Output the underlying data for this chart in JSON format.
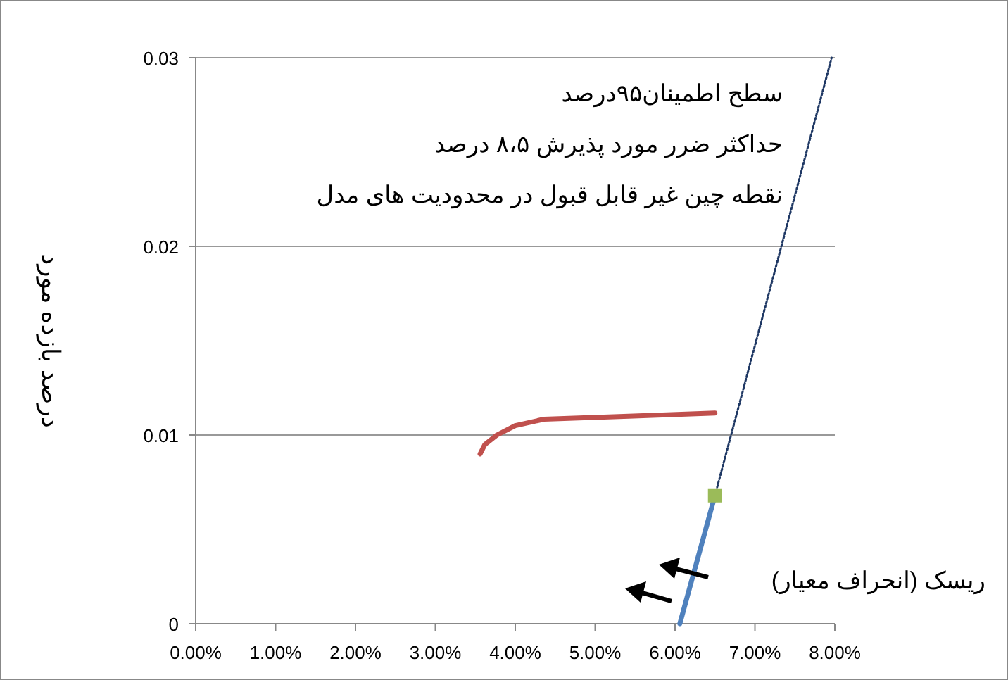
{
  "chart_data": {
    "type": "line",
    "ylabel": "درصد بازده مورد",
    "annotations": [
      "سطح اطمینان۹۵درصد",
      "حداکثر ضرر مورد پذیرش ۸،۵ درصد",
      "نقطه چین غیر قابل قبول در محدودیت های مدل",
      "ریسک (انحراف معیار)"
    ],
    "series": [
      {
        "color": "#c0504d",
        "x": [
          3.56,
          3.62,
          3.77,
          4.0,
          4.36,
          5.42,
          6.5
        ],
        "values": [
          0.009,
          0.0095,
          0.01,
          0.0105,
          0.01084,
          0.011,
          0.01117
        ]
      },
      {
        "color": "#4f81bd",
        "x": [
          6.06,
          6.5
        ],
        "values": [
          0,
          0.0068
        ]
      },
      {
        "color": "#1f3864",
        "x": [
          6.5,
          7.96
        ],
        "values": [
          0.0068,
          0.03
        ],
        "line_style": "dotted"
      },
      {
        "type": "scatter",
        "color": "#9bbb59",
        "x": [
          6.5
        ],
        "values": [
          0.0068
        ],
        "marker": "square"
      }
    ],
    "xlim": [
      0,
      8
    ],
    "ylim": [
      0,
      0.03
    ],
    "xticks": [
      {
        "value": 0,
        "label": "0.00%"
      },
      {
        "value": 1,
        "label": "1.00%"
      },
      {
        "value": 2,
        "label": "2.00%"
      },
      {
        "value": 3,
        "label": "3.00%"
      },
      {
        "value": 4,
        "label": "4.00%"
      },
      {
        "value": 5,
        "label": "5.00%"
      },
      {
        "value": 6,
        "label": "6.00%"
      },
      {
        "value": 7,
        "label": "7.00%"
      },
      {
        "value": 8,
        "label": "8.00%"
      }
    ],
    "yticks": [
      0,
      0.01,
      0.02,
      0.03
    ],
    "grid": "y"
  }
}
